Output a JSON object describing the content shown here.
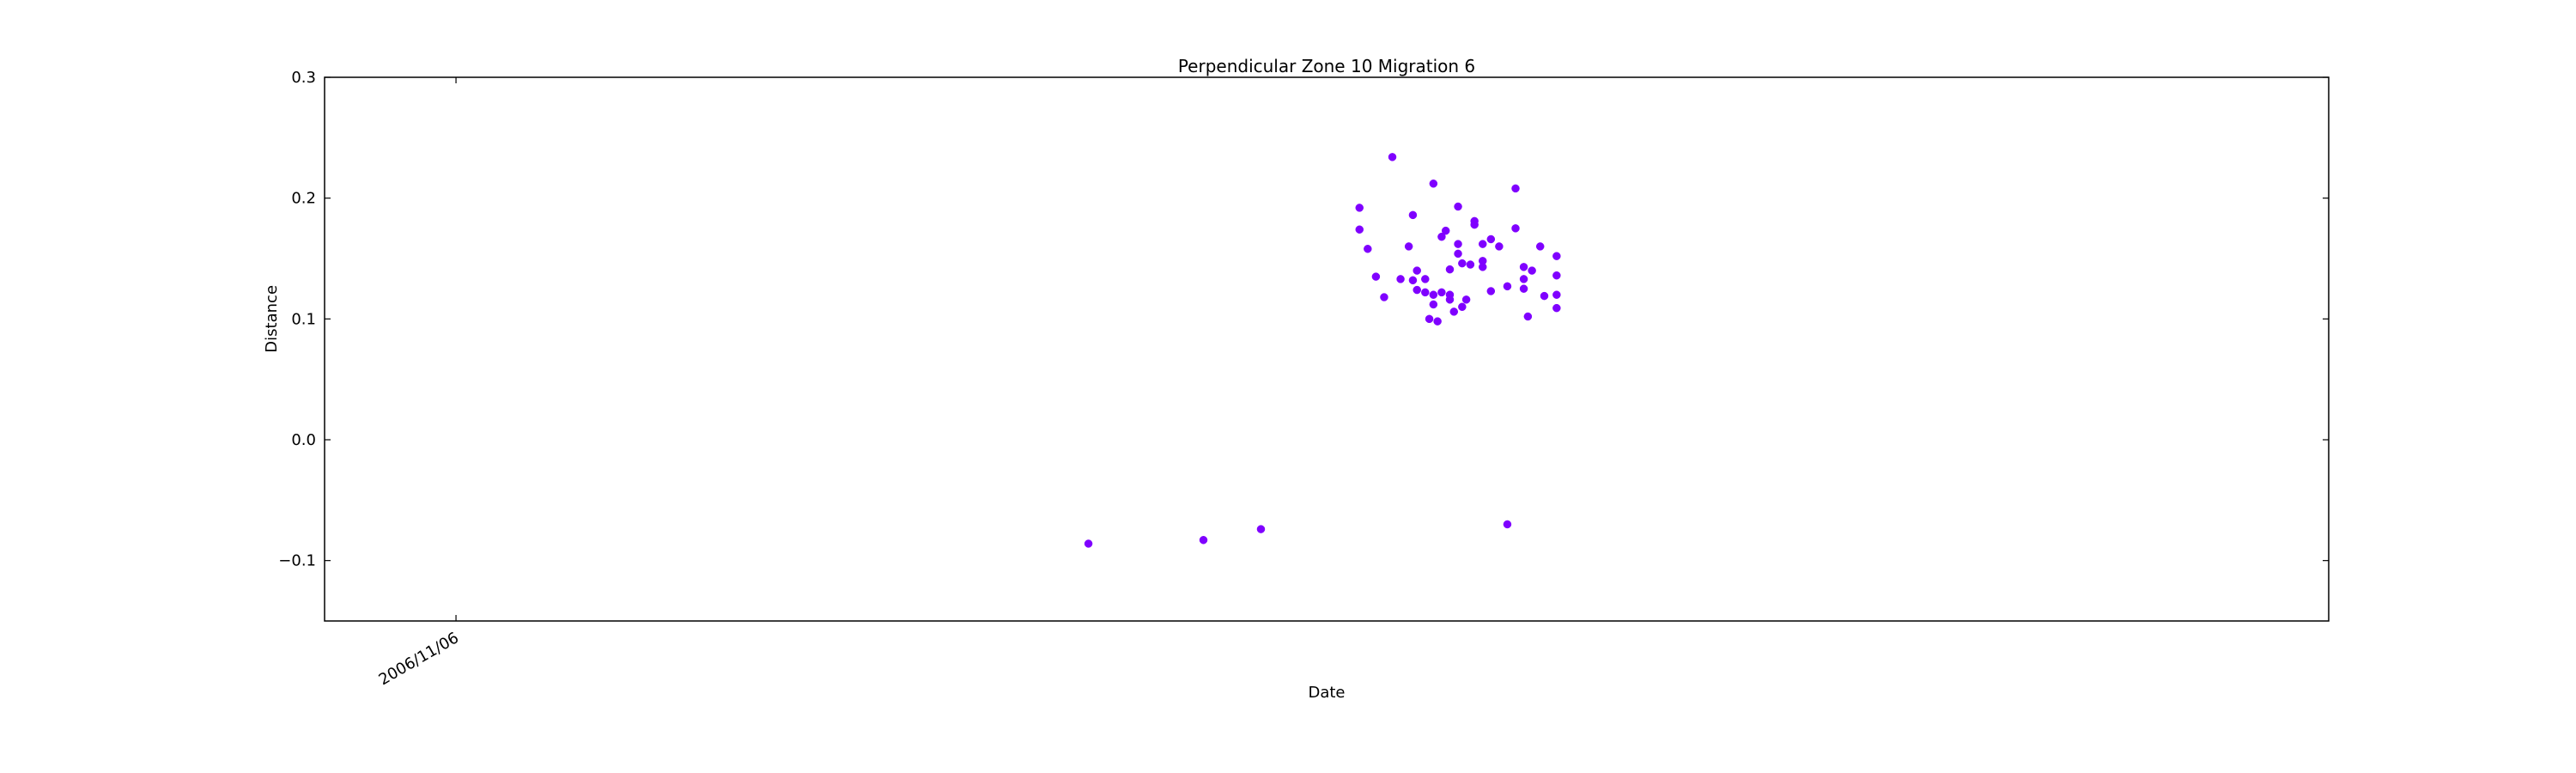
{
  "chart_data": {
    "type": "scatter",
    "title": "Perpendicular Zone 10 Migration 6",
    "xlabel": "Date",
    "ylabel": "Distance",
    "ylim": [
      -0.15,
      0.3
    ],
    "xlim": [
      -0.16,
      2.28
    ],
    "yticks": [
      -0.1,
      0.0,
      0.1,
      0.2,
      0.3
    ],
    "ytick_labels": [
      "−0.1",
      "0.0",
      "0.1",
      "0.2",
      "0.3"
    ],
    "xticks": [
      {
        "x": 0,
        "label": "2006/11/06"
      }
    ],
    "grid": false,
    "color": "#7f00ff",
    "series": [
      {
        "name": "Distance",
        "points": [
          [
            0.77,
            -0.086
          ],
          [
            0.91,
            -0.083
          ],
          [
            0.98,
            -0.074
          ],
          [
            1.28,
            -0.07
          ],
          [
            1.1,
            0.192
          ],
          [
            1.1,
            0.174
          ],
          [
            1.11,
            0.158
          ],
          [
            1.12,
            0.135
          ],
          [
            1.13,
            0.118
          ],
          [
            1.14,
            0.234
          ],
          [
            1.15,
            0.133
          ],
          [
            1.16,
            0.16
          ],
          [
            1.165,
            0.186
          ],
          [
            1.165,
            0.132
          ],
          [
            1.17,
            0.14
          ],
          [
            1.17,
            0.124
          ],
          [
            1.18,
            0.133
          ],
          [
            1.18,
            0.122
          ],
          [
            1.185,
            0.1
          ],
          [
            1.19,
            0.212
          ],
          [
            1.19,
            0.12
          ],
          [
            1.19,
            0.112
          ],
          [
            1.195,
            0.098
          ],
          [
            1.2,
            0.168
          ],
          [
            1.2,
            0.122
          ],
          [
            1.205,
            0.173
          ],
          [
            1.21,
            0.141
          ],
          [
            1.21,
            0.12
          ],
          [
            1.21,
            0.116
          ],
          [
            1.215,
            0.106
          ],
          [
            1.22,
            0.193
          ],
          [
            1.22,
            0.162
          ],
          [
            1.22,
            0.154
          ],
          [
            1.225,
            0.146
          ],
          [
            1.225,
            0.11
          ],
          [
            1.23,
            0.116
          ],
          [
            1.235,
            0.145
          ],
          [
            1.24,
            0.181
          ],
          [
            1.24,
            0.178
          ],
          [
            1.25,
            0.162
          ],
          [
            1.25,
            0.148
          ],
          [
            1.25,
            0.143
          ],
          [
            1.26,
            0.166
          ],
          [
            1.26,
            0.123
          ],
          [
            1.27,
            0.16
          ],
          [
            1.28,
            0.127
          ],
          [
            1.29,
            0.208
          ],
          [
            1.29,
            0.175
          ],
          [
            1.3,
            0.143
          ],
          [
            1.3,
            0.133
          ],
          [
            1.3,
            0.125
          ],
          [
            1.305,
            0.102
          ],
          [
            1.31,
            0.14
          ],
          [
            1.32,
            0.16
          ],
          [
            1.325,
            0.119
          ],
          [
            1.34,
            0.152
          ],
          [
            1.34,
            0.136
          ],
          [
            1.34,
            0.12
          ],
          [
            1.34,
            0.109
          ]
        ]
      }
    ]
  }
}
